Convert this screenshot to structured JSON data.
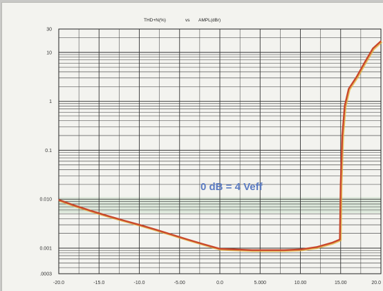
{
  "chart_data": {
    "type": "line",
    "title": "THD+N(%)",
    "title_vs": "vs",
    "title_x": "AMPL(dBr)",
    "annotation": "0 dB = 4 Veff",
    "xlim": [
      -20,
      20
    ],
    "ylim": [
      0.0003,
      30
    ],
    "y_scale": "log",
    "grid": true,
    "xticks": [
      -20,
      -15,
      -10,
      -5,
      0,
      5,
      10,
      15,
      20
    ],
    "xtick_labels": [
      "-20.0",
      "-15.0",
      "-10.0",
      "-5.00",
      "0.0",
      "5.000",
      "10.00",
      "15.00",
      "20.0"
    ],
    "yticks": [
      30,
      10,
      1,
      0.1,
      0.01,
      0.001,
      0.0003
    ],
    "ytick_labels": [
      "30",
      "10",
      "1",
      "0.1",
      "0.010",
      "0.001",
      ".0003"
    ],
    "colors": {
      "series": "#c9482c",
      "series_shadow": "#e3b13b",
      "annotation": "#5b7bc2",
      "band": "#c9dcc9"
    },
    "series": [
      {
        "x": [
          -20,
          -18,
          -16,
          -14,
          -12,
          -10,
          -8,
          -6,
          -4,
          -2,
          0,
          2,
          4,
          6,
          8,
          10,
          12,
          14,
          14.9,
          15.0,
          15.2,
          15.5,
          16,
          17,
          18,
          19,
          20
        ],
        "y": [
          0.0097,
          0.0074,
          0.0058,
          0.0046,
          0.0037,
          0.003,
          0.0024,
          0.0019,
          0.0015,
          0.0012,
          0.00097,
          0.00094,
          0.00091,
          0.00091,
          0.00091,
          0.00094,
          0.00105,
          0.0013,
          0.0015,
          0.02,
          0.2,
          0.8,
          1.8,
          3.2,
          6.3,
          12,
          17
        ]
      }
    ]
  }
}
